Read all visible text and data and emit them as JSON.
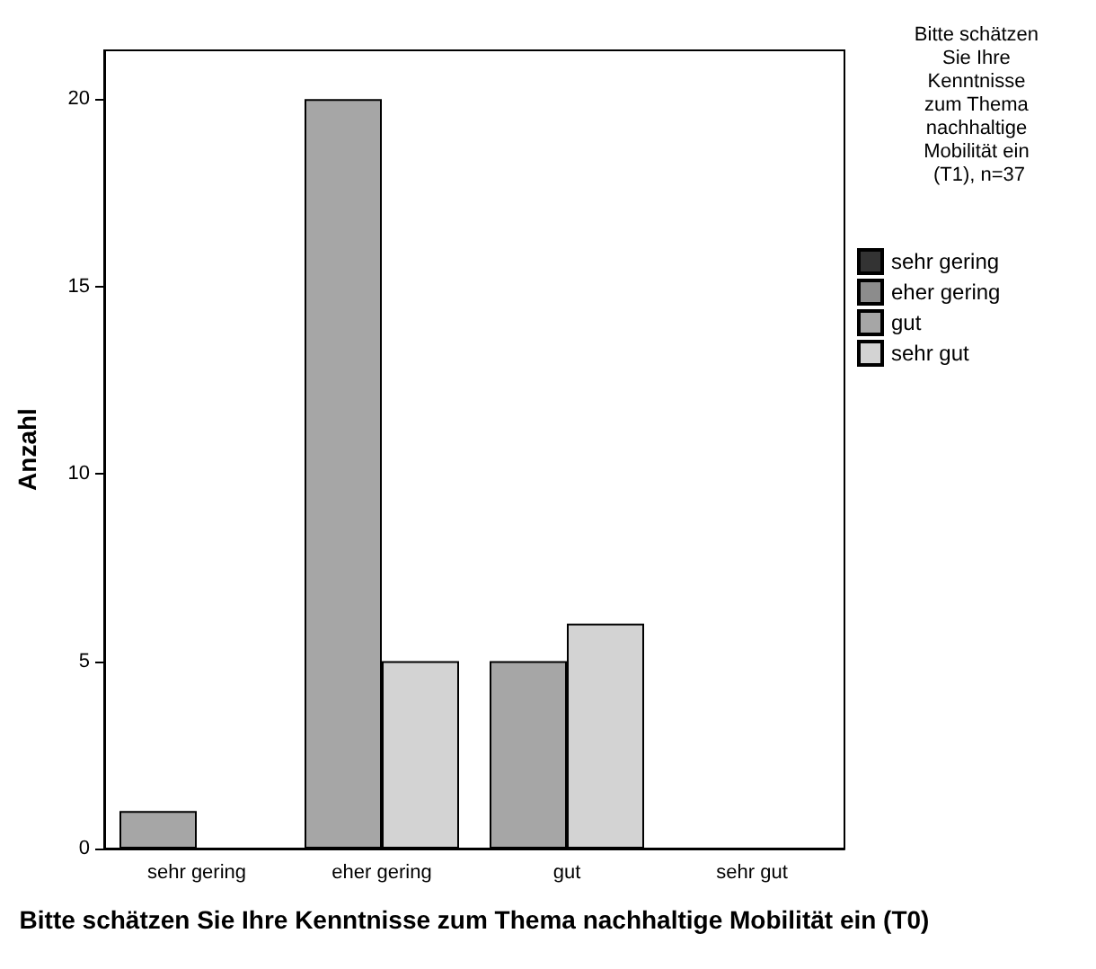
{
  "chart_data": {
    "type": "bar",
    "xlabel": "Bitte schätzen Sie Ihre Kenntnisse zum Thema nachhaltige Mobilität ein (T0)",
    "ylabel": "Anzahl",
    "legend_title": "Bitte schätzen Sie Ihre Kenntnisse zum Thema nachhaltige Mobilität ein (T1), n=37",
    "categories": [
      "sehr gering",
      "eher gering",
      "gut",
      "sehr gut"
    ],
    "series": [
      {
        "name": "sehr gering",
        "color": "#333333",
        "values": [
          0,
          0,
          0,
          0
        ]
      },
      {
        "name": "eher gering",
        "color": "#8c8c8c",
        "values": [
          0,
          0,
          0,
          0
        ]
      },
      {
        "name": "gut",
        "color": "#a6a6a6",
        "values": [
          1,
          20,
          5,
          0
        ]
      },
      {
        "name": "sehr gut",
        "color": "#d3d3d3",
        "values": [
          0,
          5,
          6,
          0
        ]
      }
    ],
    "ylim": [
      0,
      21.3
    ],
    "yticks": [
      0,
      5,
      10,
      15,
      20
    ],
    "grid": false,
    "legend": "right"
  }
}
